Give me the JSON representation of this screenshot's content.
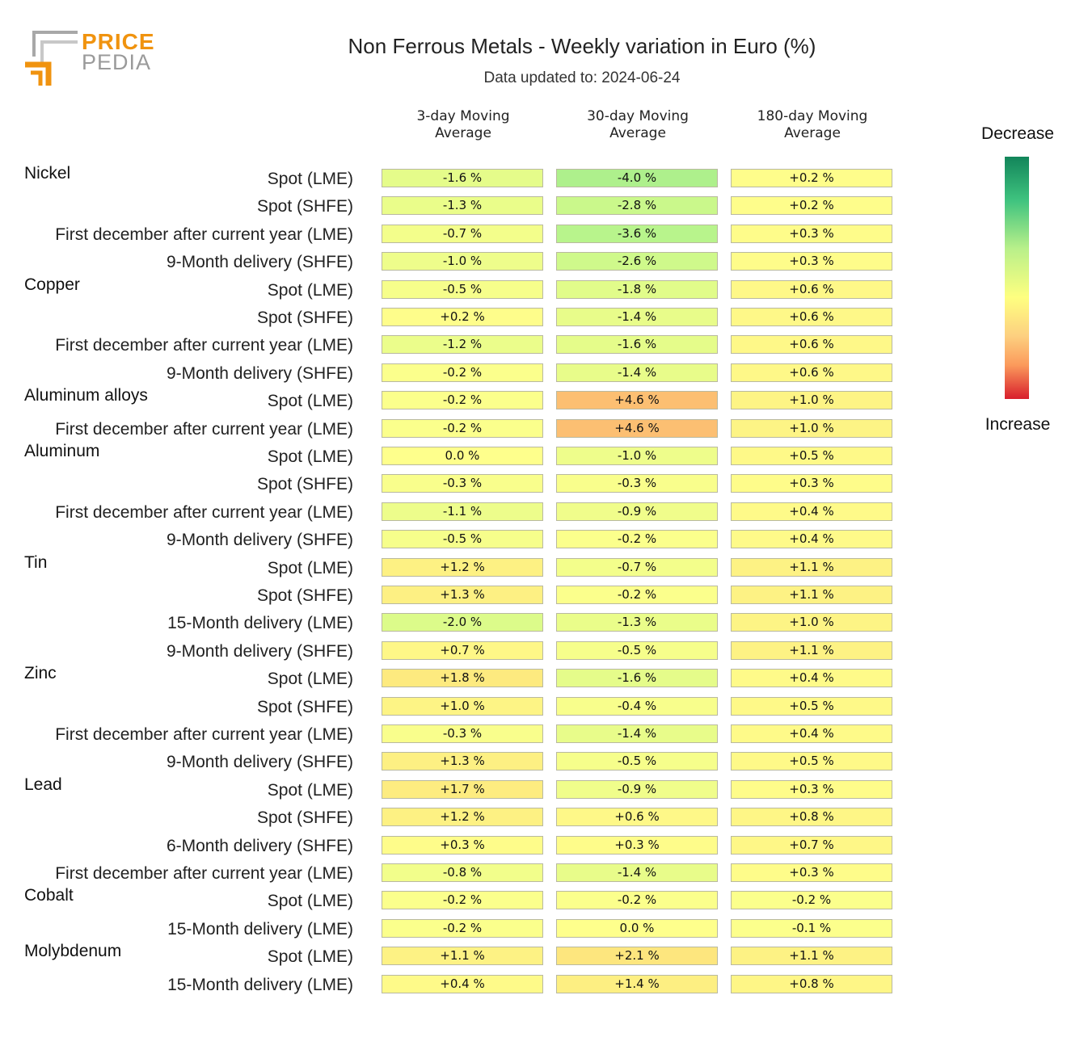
{
  "logo": {
    "line1": "PRICE",
    "line2": "PEDIA"
  },
  "chart_data": {
    "type": "table",
    "title": "Non Ferrous Metals - Weekly variation in Euro (%)",
    "subtitle": "Data updated to: 2024-06-24",
    "columns": [
      [
        "3-day Moving",
        "Average"
      ],
      [
        "30-day Moving",
        "Average"
      ],
      [
        "180-day Moving",
        "Average"
      ]
    ],
    "legend": {
      "top": "Decrease",
      "bottom": "Increase"
    },
    "groups": [
      {
        "name": "Nickel",
        "rows": [
          {
            "label": "Spot (LME)",
            "values": [
              -1.6,
              -4.0,
              0.2
            ]
          },
          {
            "label": "Spot (SHFE)",
            "values": [
              -1.3,
              -2.8,
              0.2
            ]
          },
          {
            "label": "First december after current year (LME)",
            "values": [
              -0.7,
              -3.6,
              0.3
            ]
          },
          {
            "label": "9-Month delivery (SHFE)",
            "values": [
              -1.0,
              -2.6,
              0.3
            ]
          }
        ]
      },
      {
        "name": "Copper",
        "rows": [
          {
            "label": "Spot (LME)",
            "values": [
              -0.5,
              -1.8,
              0.6
            ]
          },
          {
            "label": "Spot (SHFE)",
            "values": [
              0.2,
              -1.4,
              0.6
            ]
          },
          {
            "label": "First december after current year (LME)",
            "values": [
              -1.2,
              -1.6,
              0.6
            ]
          },
          {
            "label": "9-Month delivery (SHFE)",
            "values": [
              -0.2,
              -1.4,
              0.6
            ]
          }
        ]
      },
      {
        "name": "Aluminum alloys",
        "rows": [
          {
            "label": "Spot (LME)",
            "values": [
              -0.2,
              4.6,
              1.0
            ]
          },
          {
            "label": "First december after current year (LME)",
            "values": [
              -0.2,
              4.6,
              1.0
            ]
          }
        ]
      },
      {
        "name": "Aluminum",
        "rows": [
          {
            "label": "Spot (LME)",
            "values": [
              0.0,
              -1.0,
              0.5
            ]
          },
          {
            "label": "Spot (SHFE)",
            "values": [
              -0.3,
              -0.3,
              0.3
            ]
          },
          {
            "label": "First december after current year (LME)",
            "values": [
              -1.1,
              -0.9,
              0.4
            ]
          },
          {
            "label": "9-Month delivery (SHFE)",
            "values": [
              -0.5,
              -0.2,
              0.4
            ]
          }
        ]
      },
      {
        "name": "Tin",
        "rows": [
          {
            "label": "Spot (LME)",
            "values": [
              1.2,
              -0.7,
              1.1
            ]
          },
          {
            "label": "Spot (SHFE)",
            "values": [
              1.3,
              -0.2,
              1.1
            ]
          },
          {
            "label": "15-Month delivery (LME)",
            "values": [
              -2.0,
              -1.3,
              1.0
            ]
          },
          {
            "label": "9-Month delivery (SHFE)",
            "values": [
              0.7,
              -0.5,
              1.1
            ]
          }
        ]
      },
      {
        "name": "Zinc",
        "rows": [
          {
            "label": "Spot (LME)",
            "values": [
              1.8,
              -1.6,
              0.4
            ]
          },
          {
            "label": "Spot (SHFE)",
            "values": [
              1.0,
              -0.4,
              0.5
            ]
          },
          {
            "label": "First december after current year (LME)",
            "values": [
              -0.3,
              -1.4,
              0.4
            ]
          },
          {
            "label": "9-Month delivery (SHFE)",
            "values": [
              1.3,
              -0.5,
              0.5
            ]
          }
        ]
      },
      {
        "name": "Lead",
        "rows": [
          {
            "label": "Spot (LME)",
            "values": [
              1.7,
              -0.9,
              0.3
            ]
          },
          {
            "label": "Spot (SHFE)",
            "values": [
              1.2,
              0.6,
              0.8
            ]
          },
          {
            "label": "6-Month delivery (SHFE)",
            "values": [
              0.3,
              0.3,
              0.7
            ]
          },
          {
            "label": "First december after current year (LME)",
            "values": [
              -0.8,
              -1.4,
              0.3
            ]
          }
        ]
      },
      {
        "name": "Cobalt",
        "rows": [
          {
            "label": "Spot (LME)",
            "values": [
              -0.2,
              -0.2,
              -0.2
            ]
          },
          {
            "label": "15-Month delivery (LME)",
            "values": [
              -0.2,
              0.0,
              -0.1
            ]
          }
        ]
      },
      {
        "name": "Molybdenum",
        "rows": [
          {
            "label": "Spot (LME)",
            "values": [
              1.1,
              2.1,
              1.1
            ]
          },
          {
            "label": "15-Month delivery (LME)",
            "values": [
              0.4,
              1.4,
              0.8
            ]
          }
        ]
      }
    ]
  }
}
